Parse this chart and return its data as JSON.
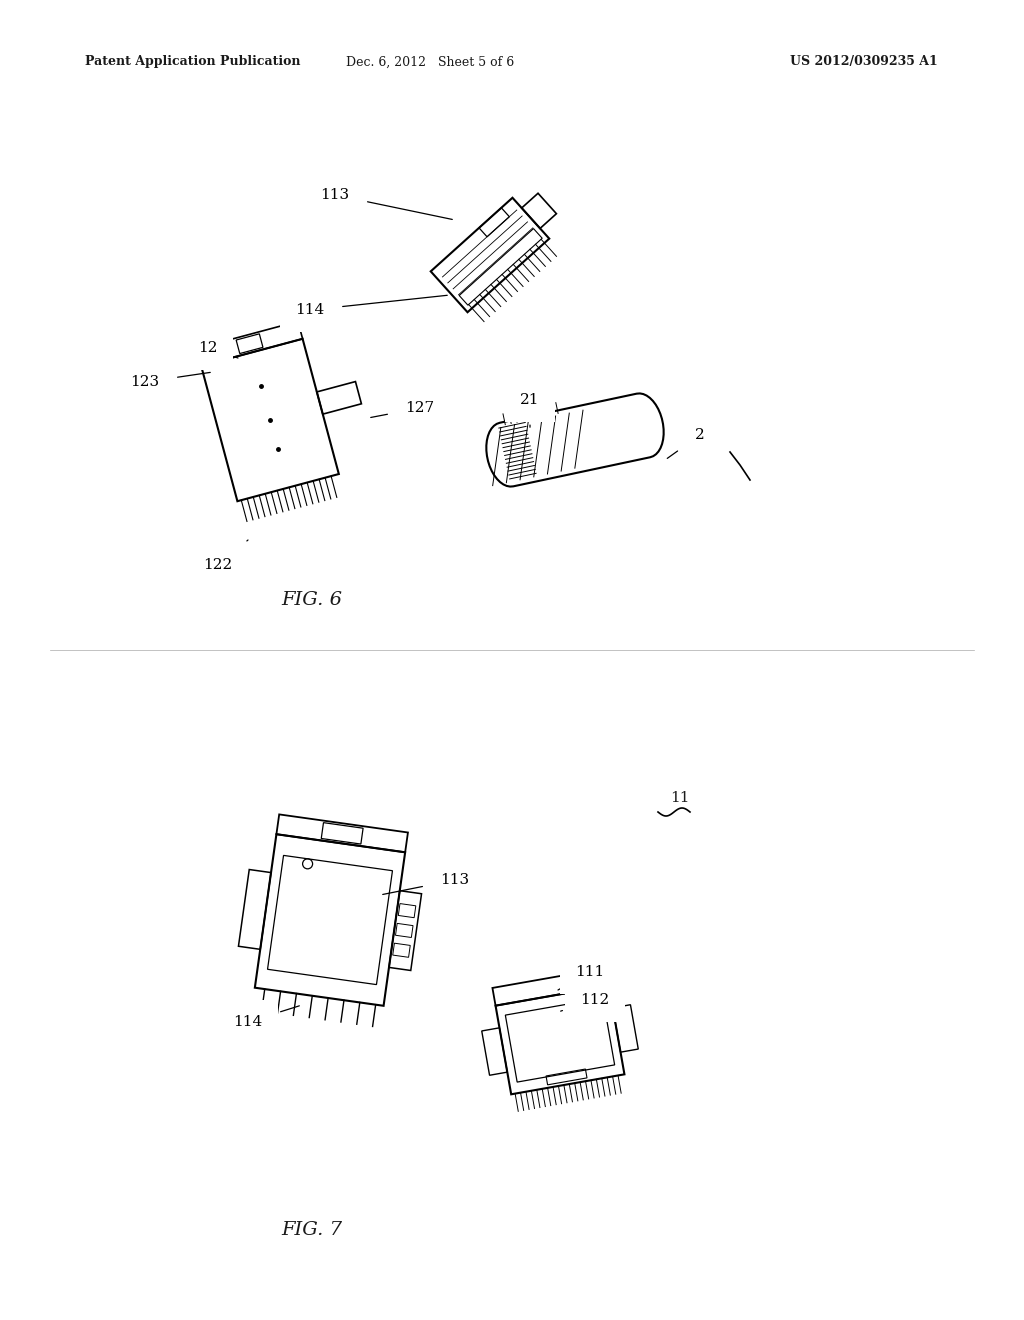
{
  "bg_color": "#ffffff",
  "header_left": "Patent Application Publication",
  "header_mid": "Dec. 6, 2012   Sheet 5 of 6",
  "header_right": "US 2012/0309235 A1",
  "fig6_label": "FIG. 6",
  "fig7_label": "FIG. 7",
  "text_color": "#1a1a1a",
  "line_color": "#1a1a1a"
}
